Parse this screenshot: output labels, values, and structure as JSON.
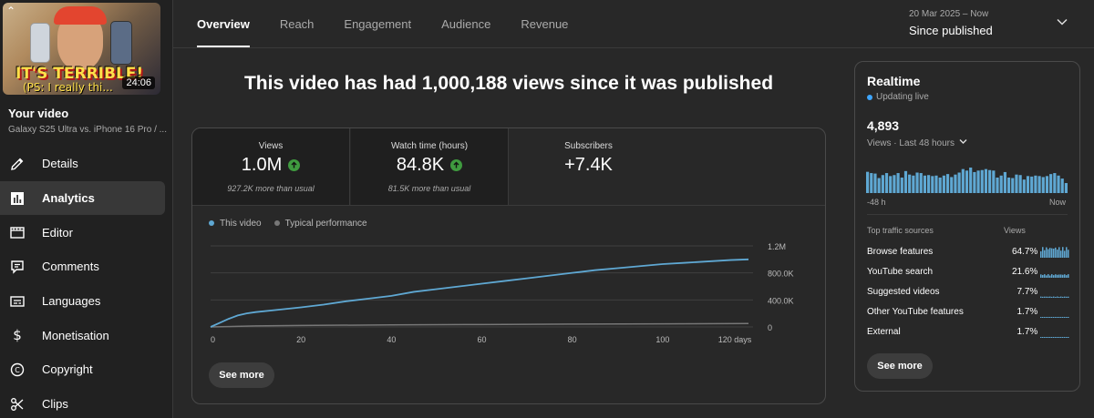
{
  "sidebar": {
    "thumbnail": {
      "text_line1": "IT'S TERRIBLE!",
      "text_line2": "(PS: I really thi...",
      "duration": "24:06"
    },
    "your_video_label": "Your video",
    "video_title": "Galaxy S25 Ultra vs. iPhone 16 Pro / ...",
    "items": [
      {
        "label": "Details",
        "icon": "pencil-icon",
        "active": false
      },
      {
        "label": "Analytics",
        "icon": "analytics-icon",
        "active": true
      },
      {
        "label": "Editor",
        "icon": "editor-icon",
        "active": false
      },
      {
        "label": "Comments",
        "icon": "comments-icon",
        "active": false
      },
      {
        "label": "Languages",
        "icon": "languages-icon",
        "active": false
      },
      {
        "label": "Monetisation",
        "icon": "dollar-icon",
        "active": false
      },
      {
        "label": "Copyright",
        "icon": "copyright-icon",
        "active": false
      },
      {
        "label": "Clips",
        "icon": "scissors-icon",
        "active": false
      }
    ]
  },
  "tabs": [
    {
      "label": "Overview",
      "active": true
    },
    {
      "label": "Reach",
      "active": false
    },
    {
      "label": "Engagement",
      "active": false
    },
    {
      "label": "Audience",
      "active": false
    },
    {
      "label": "Revenue",
      "active": false
    }
  ],
  "date_range": {
    "dates": "20 Mar 2025 – Now",
    "label": "Since published"
  },
  "headline": "This video has had 1,000,188 views since it was published",
  "metrics": [
    {
      "label": "Views",
      "value": "1.0M",
      "trend": "up",
      "note": "927.2K more than usual"
    },
    {
      "label": "Watch time (hours)",
      "value": "84.8K",
      "trend": "up",
      "note": "81.5K more than usual"
    },
    {
      "label": "Subscribers",
      "value": "+7.4K",
      "trend": "",
      "note": ""
    }
  ],
  "legend": {
    "this_video": "This video",
    "typical": "Typical performance"
  },
  "see_more_label": "See more",
  "colors": {
    "accent": "#3ea6ff",
    "line": "#5fa8d3",
    "up": "#3f9b3f"
  },
  "chart_data": {
    "type": "line",
    "x_tick_labels": [
      "0",
      "20",
      "40",
      "60",
      "80",
      "100",
      "120 days"
    ],
    "y_tick_labels": [
      "1.2M",
      "800.0K",
      "400.0K",
      "0"
    ],
    "xlim": [
      0,
      120
    ],
    "ylim": [
      0,
      1200000
    ],
    "grid": true,
    "legend_position": "top-left",
    "series": [
      {
        "name": "This video",
        "x": [
          0,
          2,
          4,
          6,
          8,
          10,
          15,
          20,
          25,
          30,
          35,
          40,
          45,
          50,
          55,
          60,
          65,
          70,
          75,
          80,
          85,
          90,
          95,
          100,
          105,
          110,
          115,
          119
        ],
        "y": [
          0,
          60000,
          120000,
          170000,
          200000,
          220000,
          255000,
          290000,
          330000,
          380000,
          420000,
          460000,
          520000,
          560000,
          600000,
          640000,
          680000,
          720000,
          760000,
          800000,
          840000,
          870000,
          900000,
          930000,
          950000,
          970000,
          990000,
          1000188
        ]
      },
      {
        "name": "Typical performance",
        "x": [
          0,
          10,
          20,
          40,
          60,
          80,
          100,
          119
        ],
        "y": [
          0,
          15000,
          22000,
          30000,
          36000,
          42000,
          46000,
          50000
        ]
      }
    ]
  },
  "realtime": {
    "title": "Realtime",
    "status": "Updating live",
    "count": "4,893",
    "views_label": "Views · Last 48 hours",
    "axis_start": "-48 h",
    "axis_end": "Now",
    "hourly_views": [
      85,
      80,
      78,
      60,
      72,
      80,
      68,
      72,
      80,
      62,
      88,
      74,
      70,
      82,
      80,
      70,
      72,
      68,
      70,
      62,
      70,
      76,
      64,
      74,
      82,
      96,
      90,
      102,
      84,
      90,
      92,
      96,
      92,
      90,
      62,
      70,
      84,
      62,
      60,
      74,
      72,
      54,
      68,
      66,
      70,
      68,
      64,
      68,
      76,
      80,
      70,
      58,
      40
    ],
    "traffic_header": {
      "source": "Top traffic sources",
      "views": "Views"
    },
    "traffic": [
      {
        "source": "Browse features",
        "pct": "64.7%",
        "share": 0.647
      },
      {
        "source": "YouTube search",
        "pct": "21.6%",
        "share": 0.216
      },
      {
        "source": "Suggested videos",
        "pct": "7.7%",
        "share": 0.077
      },
      {
        "source": "Other YouTube features",
        "pct": "1.7%",
        "share": 0.017
      },
      {
        "source": "External",
        "pct": "1.7%",
        "share": 0.017
      }
    ]
  }
}
